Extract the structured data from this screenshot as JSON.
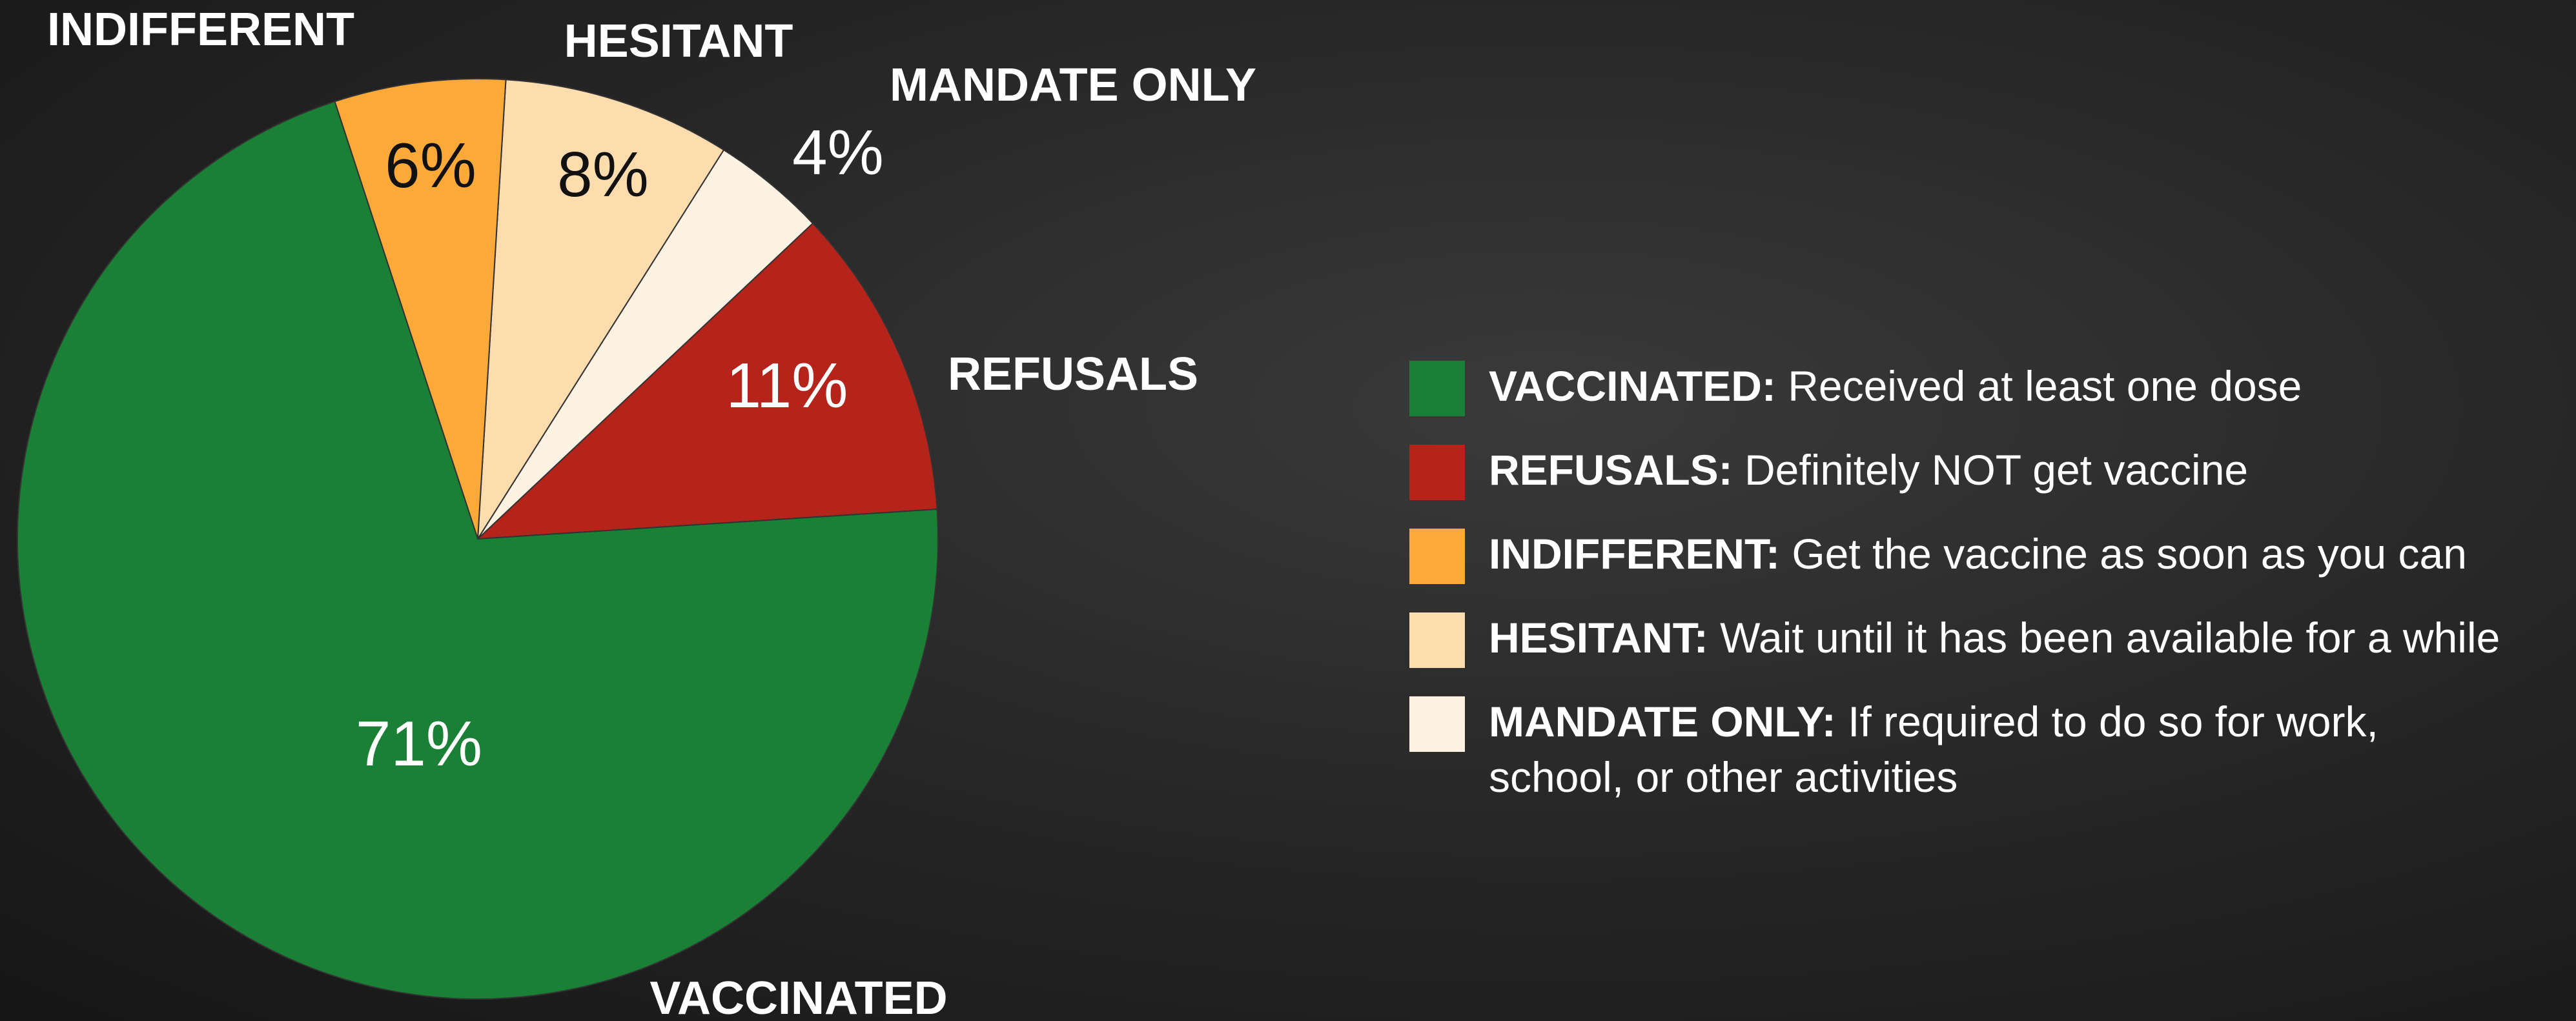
{
  "chart_data": {
    "type": "pie",
    "categories": [
      "VACCINATED",
      "REFUSALS",
      "INDIFFERENT",
      "HESITANT",
      "MANDATE ONLY"
    ],
    "values": [
      71,
      11,
      6,
      8,
      4
    ],
    "value_labels": [
      "71%",
      "11%",
      "6%",
      "8%",
      "4%"
    ],
    "colors": [
      "#1a8035",
      "#b5241b",
      "#fbaa3a",
      "#fddcae",
      "#fef3e2"
    ],
    "legend": [
      {
        "term": "VACCINATED:",
        "description": "Received at least one dose"
      },
      {
        "term": "REFUSALS:",
        "description": "Definitely NOT get vaccine"
      },
      {
        "term": "INDIFFERENT:",
        "description": "Get the vaccine as soon as you can"
      },
      {
        "term": "HESITANT:",
        "description": "Wait until it has been available for a while"
      },
      {
        "term": "MANDATE ONLY:",
        "description": "If required to do so for work, school, or other activities"
      }
    ]
  }
}
